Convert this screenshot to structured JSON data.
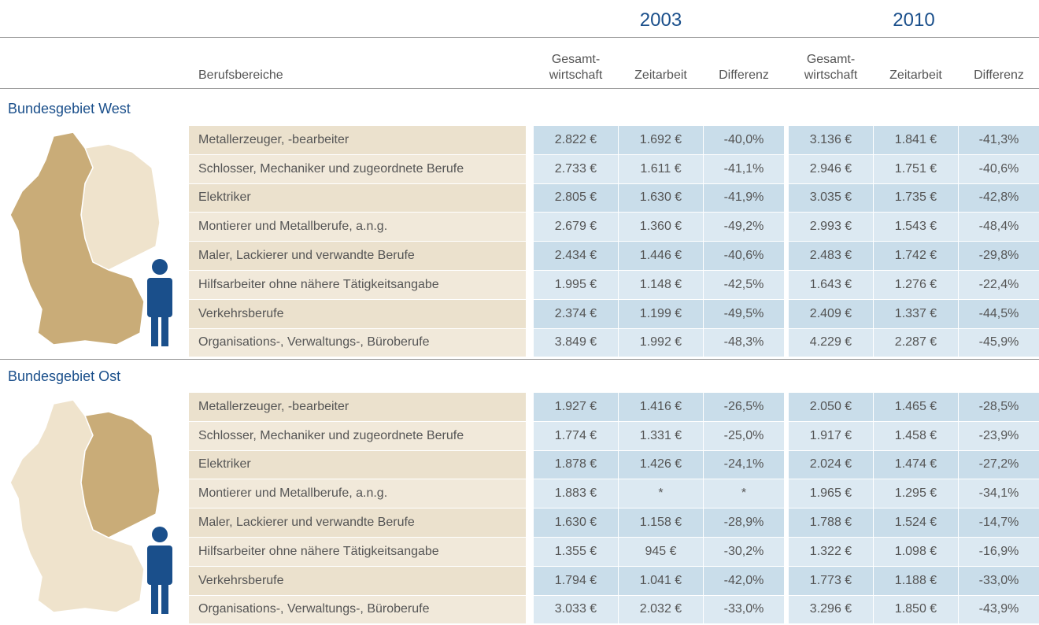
{
  "years": [
    "2003",
    "2010"
  ],
  "header": {
    "label": "Berufsbereiche",
    "columns": [
      [
        "Gesamt-",
        "wirtschaft"
      ],
      [
        "Zeitarbeit"
      ],
      [
        "Differenz"
      ],
      [
        "Gesamt-",
        "wirtschaft"
      ],
      [
        "Zeitarbeit"
      ],
      [
        "Differenz"
      ]
    ]
  },
  "sections": [
    {
      "title": "Bundesgebiet West",
      "rows": [
        {
          "label": "Metallerzeuger, -bearbeiter",
          "values": [
            "2.822 €",
            "1.692 €",
            "-40,0%",
            "3.136 €",
            "1.841 €",
            "-41,3%"
          ]
        },
        {
          "label": "Schlosser, Mechaniker und zugeordnete Berufe",
          "values": [
            "2.733 €",
            "1.611 €",
            "-41,1%",
            "2.946 €",
            "1.751 €",
            "-40,6%"
          ]
        },
        {
          "label": "Elektriker",
          "values": [
            "2.805 €",
            "1.630 €",
            "-41,9%",
            "3.035 €",
            "1.735 €",
            "-42,8%"
          ]
        },
        {
          "label": "Montierer und Metallberufe, a.n.g.",
          "values": [
            "2.679 €",
            "1.360 €",
            "-49,2%",
            "2.993 €",
            "1.543 €",
            "-48,4%"
          ]
        },
        {
          "label": "Maler, Lackierer und verwandte Berufe",
          "values": [
            "2.434 €",
            "1.446 €",
            "-40,6%",
            "2.483 €",
            "1.742 €",
            "-29,8%"
          ]
        },
        {
          "label": "Hilfsarbeiter ohne nähere Tätigkeitsangabe",
          "values": [
            "1.995 €",
            "1.148 €",
            "-42,5%",
            "1.643 €",
            "1.276 €",
            "-22,4%"
          ]
        },
        {
          "label": "Verkehrsberufe",
          "values": [
            "2.374 €",
            "1.199 €",
            "-49,5%",
            "2.409 €",
            "1.337 €",
            "-44,5%"
          ]
        },
        {
          "label": "Organisations-, Verwaltungs-, Büroberufe",
          "values": [
            "3.849 €",
            "1.992 €",
            "-48,3%",
            "4.229 €",
            "2.287 €",
            "-45,9%"
          ]
        }
      ]
    },
    {
      "title": "Bundesgebiet Ost",
      "rows": [
        {
          "label": "Metallerzeuger, -bearbeiter",
          "values": [
            "1.927 €",
            "1.416 €",
            "-26,5%",
            "2.050 €",
            "1.465 €",
            "-28,5%"
          ]
        },
        {
          "label": "Schlosser, Mechaniker und zugeordnete Berufe",
          "values": [
            "1.774 €",
            "1.331 €",
            "-25,0%",
            "1.917 €",
            "1.458 €",
            "-23,9%"
          ]
        },
        {
          "label": "Elektriker",
          "values": [
            "1.878 €",
            "1.426 €",
            "-24,1%",
            "2.024 €",
            "1.474 €",
            "-27,2%"
          ]
        },
        {
          "label": "Montierer und Metallberufe, a.n.g.",
          "values": [
            "1.883 €",
            "*",
            "*",
            "1.965 €",
            "1.295 €",
            "-34,1%"
          ]
        },
        {
          "label": "Maler, Lackierer und verwandte Berufe",
          "values": [
            "1.630 €",
            "1.158 €",
            "-28,9%",
            "1.788 €",
            "1.524 €",
            "-14,7%"
          ]
        },
        {
          "label": "Hilfsarbeiter ohne nähere Tätigkeitsangabe",
          "values": [
            "1.355 €",
            "945 €",
            "-30,2%",
            "1.322 €",
            "1.098 €",
            "-16,9%"
          ]
        },
        {
          "label": "Verkehrsberufe",
          "values": [
            "1.794 €",
            "1.041 €",
            "-42,0%",
            "1.773 €",
            "1.188 €",
            "-33,0%"
          ]
        },
        {
          "label": "Organisations-, Verwaltungs-, Büroberufe",
          "values": [
            "3.033 €",
            "2.032 €",
            "-33,0%",
            "3.296 €",
            "1.850 €",
            "-43,9%"
          ]
        }
      ]
    }
  ]
}
